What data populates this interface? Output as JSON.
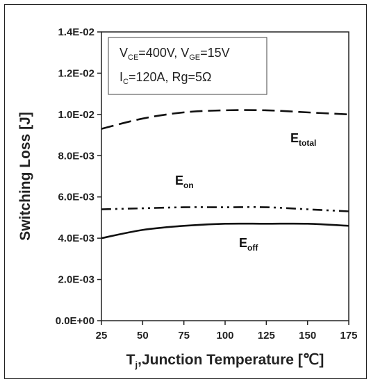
{
  "chart_data": {
    "type": "line",
    "xlabel_main": "T",
    "xlabel_sub": "j",
    "xlabel_rest": ",Junction Temperature [℃]",
    "ylabel": "Switching Loss [J]",
    "xlim": [
      25,
      175
    ],
    "ylim": [
      0,
      0.014
    ],
    "xticks": [
      25,
      50,
      75,
      100,
      125,
      150,
      175
    ],
    "xtick_labels": [
      "25",
      "50",
      "75",
      "100",
      "125",
      "150",
      "175"
    ],
    "yticks": [
      0,
      0.002,
      0.004,
      0.006,
      0.008,
      0.01,
      0.012,
      0.014
    ],
    "ytick_labels": [
      "0.0E+00",
      "2.0E-03",
      "4.0E-03",
      "6.0E-03",
      "8.0E-03",
      "1.0E-02",
      "1.2E-02",
      "1.4E-02"
    ],
    "grid": false,
    "conditions": {
      "line1": {
        "v1": "V",
        "v1_sub": "CE",
        "v1_rest": "=400V, V",
        "v2_sub": "GE",
        "v2_rest": "=15V"
      },
      "line2": {
        "i": "I",
        "i_sub": "C",
        "i_rest": "=120A, Rg=5Ω"
      }
    },
    "series": [
      {
        "key": "total",
        "label_main": "E",
        "label_sub": "total",
        "style": "dashed",
        "x": [
          25,
          50,
          75,
          100,
          125,
          150,
          175
        ],
        "y": [
          0.0093,
          0.0098,
          0.0101,
          0.0102,
          0.0102,
          0.0101,
          0.01
        ]
      },
      {
        "key": "on",
        "label_main": "E",
        "label_sub": "on",
        "style": "dash-dot-dot",
        "x": [
          25,
          50,
          75,
          100,
          125,
          150,
          175
        ],
        "y": [
          0.0054,
          0.00545,
          0.0055,
          0.0055,
          0.0055,
          0.0054,
          0.0053
        ]
      },
      {
        "key": "off",
        "label_main": "E",
        "label_sub": "off",
        "style": "solid",
        "x": [
          25,
          50,
          75,
          100,
          125,
          150,
          175
        ],
        "y": [
          0.004,
          0.0044,
          0.0046,
          0.0047,
          0.0047,
          0.0047,
          0.0046
        ]
      }
    ],
    "line_color": "#111111"
  }
}
